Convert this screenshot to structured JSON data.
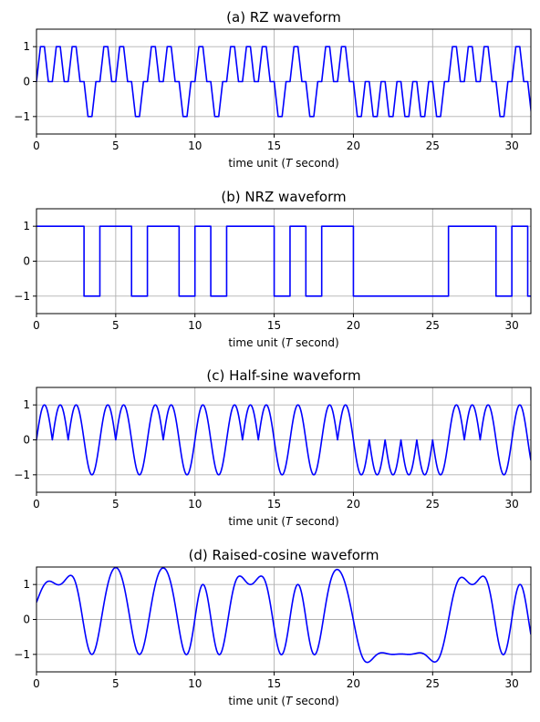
{
  "chart_data": [
    {
      "type": "line",
      "title": "(a) RZ waveform",
      "xlabel": "time unit (T second)",
      "xlim": [
        0,
        31.2
      ],
      "ylim": [
        -1.5,
        1.5
      ],
      "xticks": [
        0,
        5,
        10,
        15,
        20,
        25,
        30
      ],
      "yticks": [
        1,
        0,
        -1
      ],
      "ytick_labels": [
        "1",
        "0",
        "−1"
      ],
      "grid": true,
      "color": "#0000ff",
      "waveform": "rz",
      "bits": [
        1,
        1,
        1,
        -1,
        1,
        1,
        -1,
        1,
        1,
        -1,
        1,
        -1,
        1,
        1,
        1,
        -1,
        1,
        -1,
        1,
        1,
        -1,
        -1,
        -1,
        -1,
        -1,
        -1,
        1,
        1,
        1,
        -1,
        1,
        -1
      ]
    },
    {
      "type": "line",
      "title": "(b) NRZ waveform",
      "xlabel": "time unit (T second)",
      "xlim": [
        0,
        31.2
      ],
      "ylim": [
        -1.5,
        1.5
      ],
      "xticks": [
        0,
        5,
        10,
        15,
        20,
        25,
        30
      ],
      "yticks": [
        1,
        0,
        -1
      ],
      "ytick_labels": [
        "1",
        "0",
        "−1"
      ],
      "grid": true,
      "color": "#0000ff",
      "waveform": "nrz",
      "bits": [
        1,
        1,
        1,
        -1,
        1,
        1,
        -1,
        1,
        1,
        -1,
        1,
        -1,
        1,
        1,
        1,
        -1,
        1,
        -1,
        1,
        1,
        -1,
        -1,
        -1,
        -1,
        -1,
        -1,
        1,
        1,
        1,
        -1,
        1,
        -1
      ]
    },
    {
      "type": "line",
      "title": "(c) Half-sine waveform",
      "xlabel": "time unit (T second)",
      "xlim": [
        0,
        31.2
      ],
      "ylim": [
        -1.5,
        1.5
      ],
      "xticks": [
        0,
        5,
        10,
        15,
        20,
        25,
        30
      ],
      "yticks": [
        1,
        0,
        -1
      ],
      "ytick_labels": [
        "1",
        "0",
        "−1"
      ],
      "grid": true,
      "color": "#0000ff",
      "waveform": "halfsine",
      "bits": [
        1,
        1,
        1,
        -1,
        1,
        1,
        -1,
        1,
        1,
        -1,
        1,
        -1,
        1,
        1,
        1,
        -1,
        1,
        -1,
        1,
        1,
        -1,
        -1,
        -1,
        -1,
        -1,
        -1,
        1,
        1,
        1,
        -1,
        1,
        -1
      ]
    },
    {
      "type": "line",
      "title": "(d) Raised-cosine waveform",
      "xlabel": "time unit (T second)",
      "xlim": [
        0,
        31.2
      ],
      "ylim": [
        -1.5,
        1.5
      ],
      "xticks": [
        0,
        5,
        10,
        15,
        20,
        25,
        30
      ],
      "yticks": [
        1,
        0,
        -1
      ],
      "ytick_labels": [
        "1",
        "0",
        "−1"
      ],
      "grid": true,
      "color": "#0000ff",
      "waveform": "raisedcosine",
      "bits": [
        1,
        1,
        1,
        -1,
        1,
        1,
        -1,
        1,
        1,
        -1,
        1,
        -1,
        1,
        1,
        1,
        -1,
        1,
        -1,
        1,
        1,
        -1,
        -1,
        -1,
        -1,
        -1,
        -1,
        1,
        1,
        1,
        -1,
        1,
        -1
      ]
    }
  ]
}
